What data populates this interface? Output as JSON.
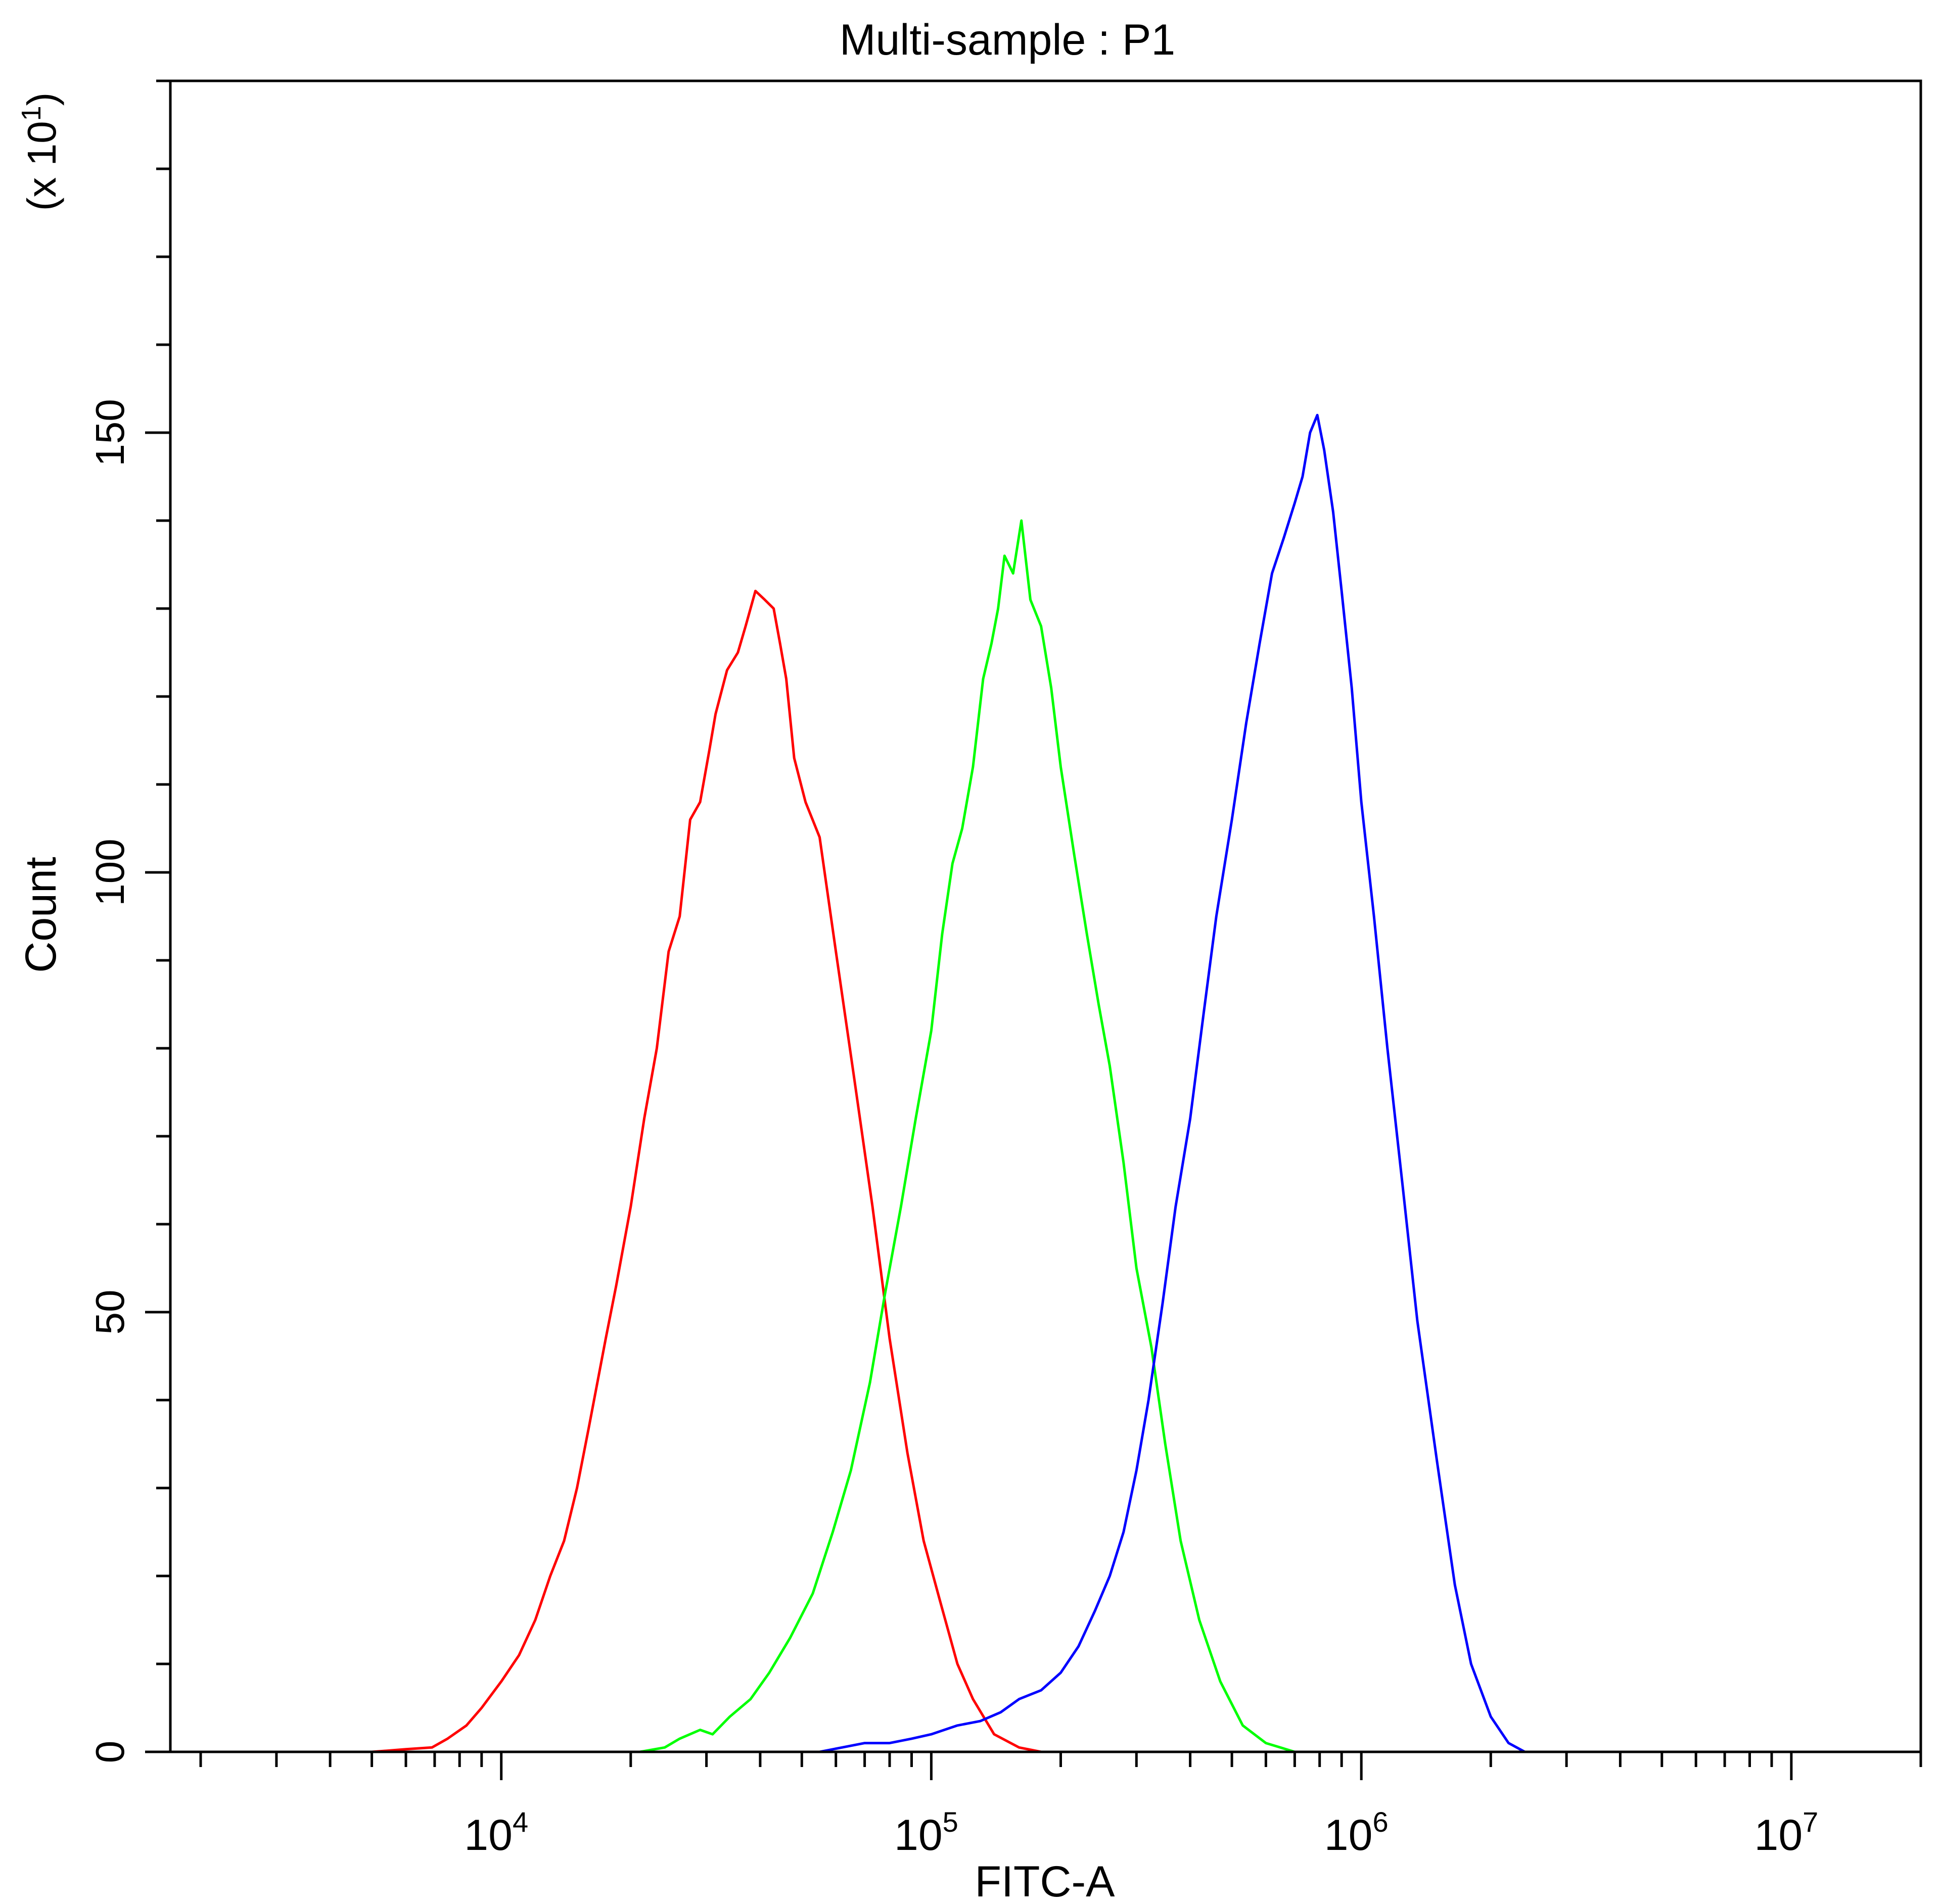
{
  "chart_data": {
    "type": "line",
    "title": "Multi-sample : P1",
    "xlabel": "FITC-A",
    "ylabel": "Count",
    "y_multiplier_label": "(x 10",
    "y_multiplier_exp": "1",
    "y_multiplier_close": ")",
    "x_scale": "log",
    "xlim": [
      1700,
      20000000
    ],
    "ylim": [
      0,
      190
    ],
    "x_ticks": [
      {
        "base": "10",
        "exp": "4",
        "value": 10000
      },
      {
        "base": "10",
        "exp": "5",
        "value": 100000
      },
      {
        "base": "10",
        "exp": "6",
        "value": 1000000
      },
      {
        "base": "10",
        "exp": "7",
        "value": 10000000
      }
    ],
    "y_ticks": [
      {
        "label": "0",
        "value": 0
      },
      {
        "label": "50",
        "value": 50
      },
      {
        "label": "100",
        "value": 100
      },
      {
        "label": "150",
        "value": 150
      }
    ],
    "grid": false,
    "legend": "none",
    "series": [
      {
        "color": "#ff0000",
        "x": [
          5000,
          6000,
          6900,
          7500,
          8300,
          9000,
          10000,
          11000,
          12000,
          13000,
          14000,
          15000,
          16000,
          17500,
          18500,
          20000,
          21500,
          23000,
          24500,
          26000,
          27500,
          29000,
          30500,
          31500,
          33500,
          35500,
          37000,
          39000,
          41000,
          43000,
          44500,
          46000,
          48000,
          51000,
          55000,
          60000,
          66000,
          73000,
          80000,
          88000,
          96000,
          105000,
          115000,
          125000,
          140000,
          160000,
          180000
        ],
        "y": [
          0,
          0.3,
          0.5,
          1.5,
          3,
          5,
          8,
          11,
          15,
          20,
          24,
          30,
          37,
          47,
          53,
          62,
          72,
          80,
          91,
          95,
          106,
          108,
          114,
          118,
          123,
          125,
          128,
          132,
          131,
          130,
          126,
          122,
          113,
          108,
          104,
          91,
          77,
          62,
          47,
          34,
          24,
          17,
          10,
          6,
          2,
          0.5,
          0
        ]
      },
      {
        "color": "#00ff00",
        "x": [
          21000,
          24000,
          26000,
          29000,
          31000,
          34000,
          38000,
          42000,
          47000,
          53000,
          59000,
          65000,
          72000,
          78000,
          85000,
          92000,
          100000,
          106000,
          112000,
          118000,
          125000,
          132000,
          138000,
          143000,
          148000,
          155000,
          162000,
          170000,
          180000,
          190000,
          200000,
          215000,
          230000,
          245000,
          260000,
          280000,
          300000,
          325000,
          350000,
          380000,
          420000,
          470000,
          530000,
          600000,
          700000
        ],
        "y": [
          0,
          0.5,
          1.5,
          2.5,
          2,
          4,
          6,
          9,
          13,
          18,
          25,
          32,
          42,
          52,
          62,
          72,
          82,
          93,
          101,
          105,
          112,
          122,
          126,
          130,
          136,
          134,
          140,
          131,
          128,
          121,
          112,
          102,
          93,
          85,
          78,
          67,
          55,
          46,
          35,
          24,
          15,
          8,
          3,
          1,
          0
        ]
      },
      {
        "color": "#0000ff",
        "x": [
          55000,
          62000,
          70000,
          80000,
          90000,
          100000,
          115000,
          130000,
          145000,
          160000,
          180000,
          200000,
          220000,
          240000,
          260000,
          280000,
          300000,
          320000,
          345000,
          370000,
          400000,
          430000,
          460000,
          500000,
          540000,
          580000,
          620000,
          660000,
          700000,
          730000,
          760000,
          790000,
          820000,
          860000,
          900000,
          950000,
          1000000,
          1070000,
          1150000,
          1250000,
          1350000,
          1500000,
          1650000,
          1800000,
          2000000,
          2200000,
          2400000
        ],
        "y": [
          0,
          0.5,
          1,
          1,
          1.5,
          2,
          3,
          3.5,
          4.5,
          6,
          7,
          9,
          12,
          16,
          20,
          25,
          32,
          40,
          51,
          62,
          72,
          84,
          95,
          106,
          117,
          126,
          134,
          138,
          142,
          145,
          150,
          152,
          148,
          141,
          132,
          121,
          108,
          95,
          80,
          64,
          49,
          33,
          19,
          10,
          4,
          1,
          0
        ]
      }
    ]
  }
}
